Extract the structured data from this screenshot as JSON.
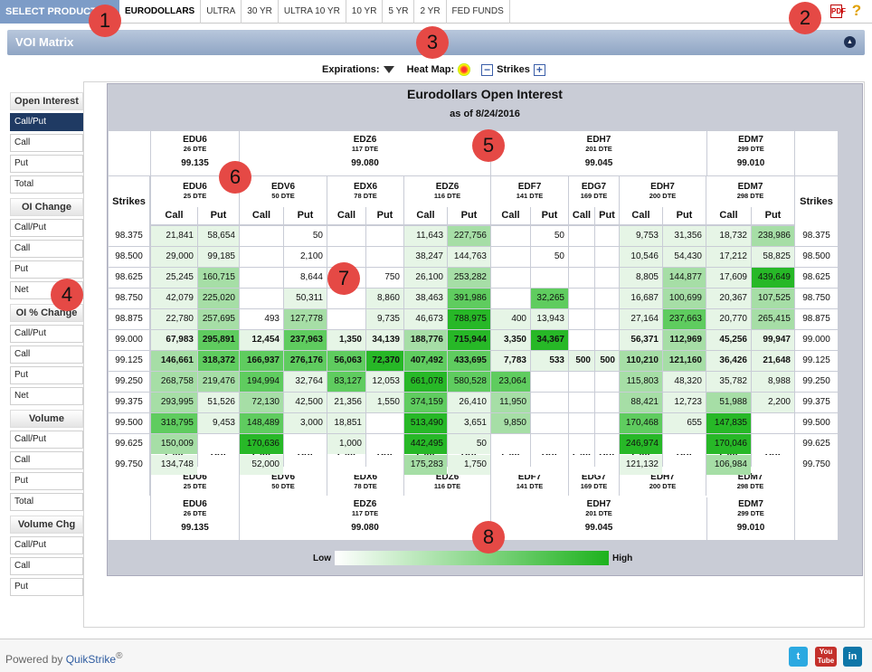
{
  "topnav": {
    "select_product": "SELECT PRODUCT",
    "tabs": [
      "EURODOLLARS",
      "ULTRA",
      "30 YR",
      "ULTRA 10 YR",
      "10 YR",
      "5 YR",
      "2 YR",
      "FED FUNDS"
    ],
    "pdf_icon": "PDF",
    "help_icon": "?"
  },
  "panel": {
    "title": "VOI Matrix"
  },
  "controls": {
    "expirations": "Expirations:",
    "heatmap": "Heat Map:",
    "strikes": "Strikes",
    "minus": "−",
    "plus": "+"
  },
  "sidebar": [
    {
      "header": "Open Interest",
      "items": [
        "Call/Put",
        "Call",
        "Put",
        "Total"
      ]
    },
    {
      "header": "OI Change",
      "items": [
        "Call/Put",
        "Call",
        "Put",
        "Net"
      ]
    },
    {
      "header": "OI % Change",
      "items": [
        "Call/Put",
        "Call",
        "Put",
        "Net"
      ]
    },
    {
      "header": "Volume",
      "items": [
        "Call/Put",
        "Call",
        "Put",
        "Total"
      ]
    },
    {
      "header": "Volume Chg",
      "items": [
        "Call/Put",
        "Call",
        "Put"
      ]
    }
  ],
  "matrix": {
    "title": "Eurodollars Open Interest",
    "date": "as of 8/24/2016",
    "strikes_label": "Strikes",
    "call_label": "Call",
    "put_label": "Put",
    "futures": [
      {
        "name": "EDU6",
        "dte": "26 DTE",
        "price": "99.135"
      },
      {
        "name": "EDZ6",
        "dte": "117 DTE",
        "price": "99.080"
      },
      {
        "name": "EDH7",
        "dte": "201 DTE",
        "price": "99.045"
      },
      {
        "name": "EDM7",
        "dte": "299 DTE",
        "price": "99.010"
      }
    ],
    "options": [
      {
        "name": "EDU6",
        "dte": "25 DTE"
      },
      {
        "name": "EDV6",
        "dte": "50 DTE"
      },
      {
        "name": "EDX6",
        "dte": "78 DTE"
      },
      {
        "name": "EDZ6",
        "dte": "116 DTE"
      },
      {
        "name": "EDF7",
        "dte": "141 DTE"
      },
      {
        "name": "EDG7",
        "dte": "169 DTE"
      },
      {
        "name": "EDH7",
        "dte": "200 DTE"
      },
      {
        "name": "EDM7",
        "dte": "298 DTE"
      }
    ],
    "strikes": [
      "98.375",
      "98.500",
      "98.625",
      "98.750",
      "98.875",
      "99.000",
      "99.125",
      "99.250",
      "99.375",
      "99.500",
      "99.625",
      "99.750"
    ],
    "bold_rows": [
      5,
      6
    ],
    "rows": [
      [
        "21,841",
        "58,654",
        "",
        "50",
        "",
        "",
        "11,643",
        "227,756",
        "",
        "50",
        "",
        "",
        "9,753",
        "31,356",
        "18,732",
        "238,986"
      ],
      [
        "29,000",
        "99,185",
        "",
        "2,100",
        "",
        "",
        "38,247",
        "144,763",
        "",
        "50",
        "",
        "",
        "10,546",
        "54,430",
        "17,212",
        "58,825"
      ],
      [
        "25,245",
        "160,715",
        "",
        "8,644",
        "",
        "750",
        "26,100",
        "253,282",
        "",
        "",
        "",
        "",
        "8,805",
        "144,877",
        "17,609",
        "439,649"
      ],
      [
        "42,079",
        "225,020",
        "",
        "50,311",
        "",
        "8,860",
        "38,463",
        "391,986",
        "",
        "32,265",
        "",
        "",
        "16,687",
        "100,699",
        "20,367",
        "107,525"
      ],
      [
        "22,780",
        "257,695",
        "493",
        "127,778",
        "",
        "9,735",
        "46,673",
        "788,975",
        "400",
        "13,943",
        "",
        "",
        "27,164",
        "237,663",
        "20,770",
        "265,415"
      ],
      [
        "67,983",
        "295,891",
        "12,454",
        "237,963",
        "1,350",
        "34,139",
        "188,776",
        "715,944",
        "3,350",
        "34,367",
        "",
        "",
        "56,371",
        "112,969",
        "45,256",
        "99,947"
      ],
      [
        "146,661",
        "318,372",
        "166,937",
        "276,176",
        "56,063",
        "72,370",
        "407,492",
        "433,695",
        "7,783",
        "533",
        "500",
        "500",
        "110,210",
        "121,160",
        "36,426",
        "21,648"
      ],
      [
        "268,758",
        "219,476",
        "194,994",
        "32,764",
        "83,127",
        "12,053",
        "661,078",
        "580,528",
        "23,064",
        "",
        "",
        "",
        "115,803",
        "48,320",
        "35,782",
        "8,988"
      ],
      [
        "293,995",
        "51,526",
        "72,130",
        "42,500",
        "21,356",
        "1,550",
        "374,159",
        "26,410",
        "11,950",
        "",
        "",
        "",
        "88,421",
        "12,723",
        "51,988",
        "2,200"
      ],
      [
        "318,795",
        "9,453",
        "148,489",
        "3,000",
        "18,851",
        "",
        "513,490",
        "3,651",
        "9,850",
        "",
        "",
        "",
        "170,468",
        "655",
        "147,835",
        ""
      ],
      [
        "150,009",
        "",
        "170,636",
        "",
        "1,000",
        "",
        "442,495",
        "50",
        "",
        "",
        "",
        "",
        "246,974",
        "",
        "170,046",
        ""
      ],
      [
        "134,748",
        "",
        "52,000",
        "",
        "",
        "",
        "175,283",
        "1,750",
        "",
        "",
        "",
        "",
        "121,132",
        "",
        "106,984",
        ""
      ]
    ],
    "heat": [
      [
        1,
        1,
        0,
        0,
        0,
        0,
        1,
        2,
        0,
        0,
        0,
        0,
        1,
        1,
        1,
        2
      ],
      [
        1,
        1,
        0,
        0,
        0,
        0,
        1,
        1,
        0,
        0,
        0,
        0,
        1,
        1,
        1,
        1
      ],
      [
        1,
        2,
        0,
        0,
        0,
        0,
        1,
        2,
        0,
        0,
        0,
        0,
        1,
        2,
        1,
        4
      ],
      [
        1,
        2,
        0,
        1,
        0,
        1,
        1,
        3,
        0,
        3,
        0,
        0,
        1,
        2,
        1,
        2
      ],
      [
        1,
        2,
        0,
        2,
        0,
        1,
        1,
        4,
        1,
        1,
        0,
        0,
        1,
        3,
        1,
        2
      ],
      [
        1,
        3,
        1,
        3,
        1,
        1,
        2,
        4,
        1,
        4,
        0,
        0,
        1,
        2,
        1,
        1
      ],
      [
        2,
        3,
        3,
        3,
        3,
        4,
        3,
        3,
        1,
        1,
        1,
        1,
        2,
        2,
        1,
        1
      ],
      [
        2,
        2,
        3,
        1,
        3,
        1,
        4,
        3,
        3,
        0,
        0,
        0,
        2,
        1,
        1,
        1
      ],
      [
        2,
        1,
        2,
        1,
        1,
        1,
        3,
        1,
        2,
        0,
        0,
        0,
        2,
        1,
        2,
        1
      ],
      [
        3,
        1,
        3,
        1,
        1,
        0,
        4,
        1,
        2,
        0,
        0,
        0,
        3,
        1,
        4,
        0
      ],
      [
        2,
        0,
        4,
        0,
        1,
        0,
        4,
        1,
        0,
        0,
        0,
        0,
        4,
        0,
        4,
        0
      ],
      [
        1,
        0,
        1,
        0,
        0,
        0,
        2,
        1,
        0,
        0,
        0,
        0,
        1,
        0,
        2,
        0
      ]
    ],
    "heat_colors": [
      "#ffffff",
      "#e6f5e6",
      "#a6dea6",
      "#5fcc5f",
      "#27b827"
    ]
  },
  "legend": {
    "low": "Low",
    "high": "High",
    "colors": [
      "#ffffff",
      "#1db21d"
    ]
  },
  "footer": {
    "powered": "Powered by",
    "brand": "QuikStrike",
    "reg": "®",
    "twitter": "t",
    "youtube": "You Tube",
    "linkedin": "in"
  },
  "callouts": [
    "1",
    "2",
    "3",
    "4",
    "5",
    "6",
    "7",
    "8"
  ]
}
